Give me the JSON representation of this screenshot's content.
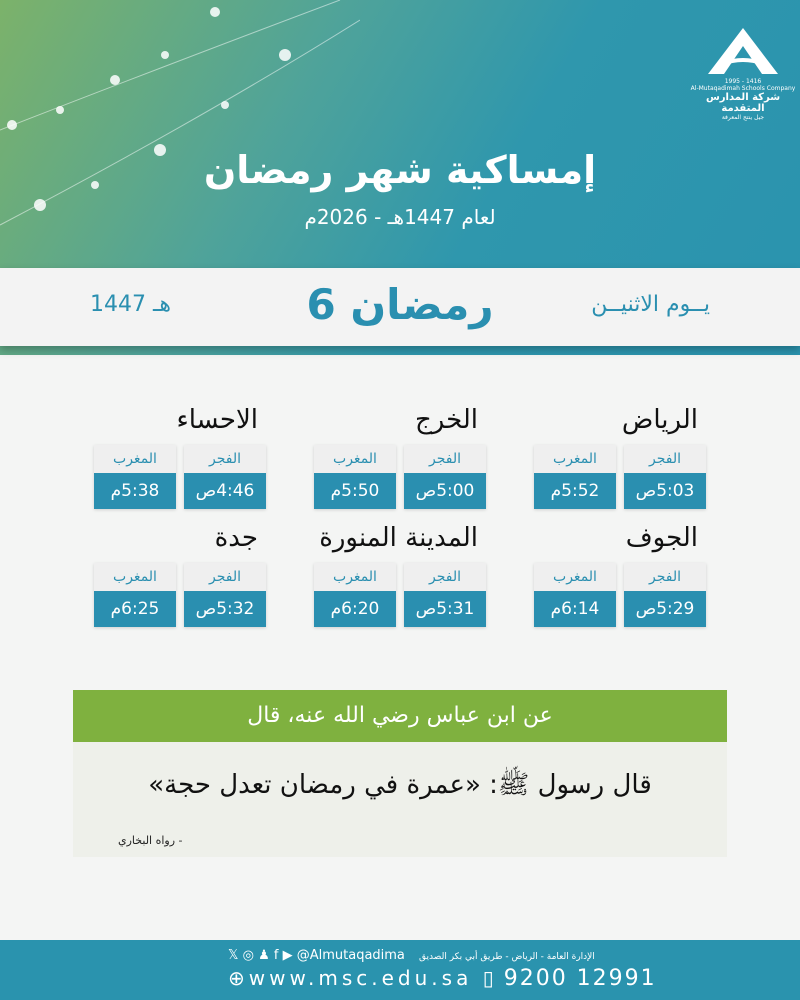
{
  "logo": {
    "years": "1995 - 1416",
    "en": "Al-Mutaqadimah Schools Company",
    "ar": "شركة المدارس المتقدمة",
    "tagline": "جيل ينتج المعرفة"
  },
  "header": {
    "title": "إمساكية شهر رمضان",
    "subtitle": "لعام 1447هـ - 2026م"
  },
  "banner": {
    "day": "يــوم الاثنيــن",
    "date": "6 رمضان",
    "year": "1447 هـ"
  },
  "labels": {
    "fajr": "الفجر",
    "maghrib": "المغرب"
  },
  "cities": [
    {
      "name": "الرياض",
      "fajr": "5:03ص",
      "maghrib": "5:52م"
    },
    {
      "name": "الخرج",
      "fajr": "5:00ص",
      "maghrib": "5:50م"
    },
    {
      "name": "الاحساء",
      "fajr": "4:46ص",
      "maghrib": "5:38م"
    },
    {
      "name": "الجوف",
      "fajr": "5:29ص",
      "maghrib": "6:14م"
    },
    {
      "name": "المدينة المنورة",
      "fajr": "5:31ص",
      "maghrib": "6:20م"
    },
    {
      "name": "جدة",
      "fajr": "5:32ص",
      "maghrib": "6:25م"
    }
  ],
  "quote": {
    "heading": "عن ابن عباس رضي الله عنه، قال",
    "text": "قال رسول ﷺ: «عمرة في رمضان تعدل حجة»",
    "source": "-  رواه البخاري"
  },
  "footer": {
    "social": "@Almutaqadima",
    "address": "الإدارة العامة - الرياض - طريق أبي بكر الصديق",
    "website": "www.msc.edu.sa",
    "phone": "9200 12991"
  },
  "colors": {
    "teal": "#2a8fb0",
    "green": "#7fb13f"
  }
}
